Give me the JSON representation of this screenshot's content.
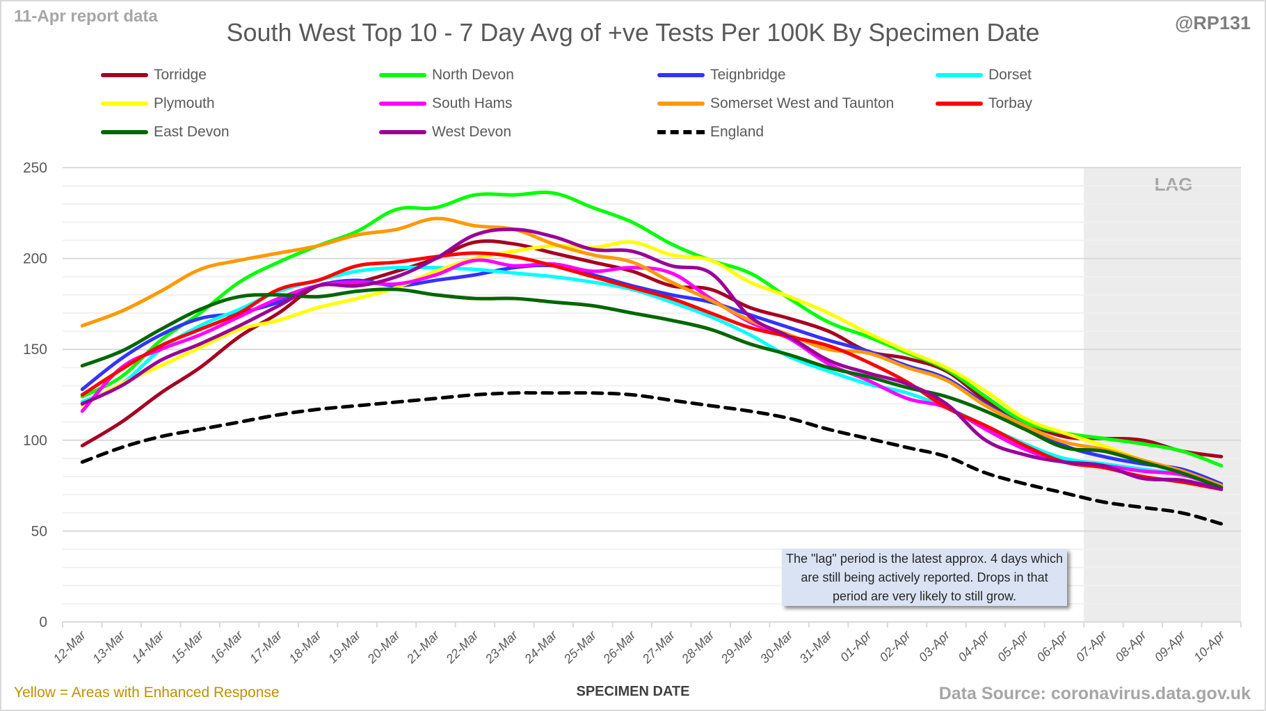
{
  "header": {
    "report_date": "11-Apr report data",
    "handle": "@RP131"
  },
  "footer": {
    "footnote": "Yellow = Areas with Enhanced Response",
    "source": "Data Source: coronavirus.data.gov.uk"
  },
  "note": "The \"lag\" period is the latest approx. 4 days which are still being actively reported.  Drops in that period are very likely to still grow.",
  "chart_data": {
    "type": "line",
    "title": "South West Top 10 - 7 Day Avg of +ve Tests Per 100K By Specimen Date",
    "xlabel": "SPECIMEN DATE",
    "ylabel": "",
    "ylim": [
      0,
      250
    ],
    "yticks": [
      0,
      50,
      100,
      150,
      200,
      250
    ],
    "grid": true,
    "legend_position": "top",
    "lag_region": {
      "label": "LAG",
      "from": "07-Apr",
      "to": "10-Apr",
      "color": "#ececec"
    },
    "x": [
      "12-Mar",
      "13-Mar",
      "14-Mar",
      "15-Mar",
      "16-Mar",
      "17-Mar",
      "18-Mar",
      "19-Mar",
      "20-Mar",
      "21-Mar",
      "22-Mar",
      "23-Mar",
      "24-Mar",
      "25-Mar",
      "26-Mar",
      "27-Mar",
      "28-Mar",
      "29-Mar",
      "30-Mar",
      "31-Mar",
      "01-Apr",
      "02-Apr",
      "03-Apr",
      "04-Apr",
      "05-Apr",
      "06-Apr",
      "07-Apr",
      "08-Apr",
      "09-Apr",
      "10-Apr"
    ],
    "series": [
      {
        "name": "Torridge",
        "color": "#a50021",
        "dashed": false,
        "values": [
          97,
          110,
          126,
          140,
          157,
          170,
          185,
          187,
          193,
          200,
          209,
          208,
          203,
          198,
          193,
          185,
          183,
          173,
          167,
          160,
          149,
          145,
          138,
          122,
          110,
          102,
          101,
          100,
          94,
          91
        ]
      },
      {
        "name": "North Devon",
        "color": "#00ff00",
        "dashed": false,
        "values": [
          124,
          135,
          155,
          170,
          187,
          198,
          207,
          215,
          227,
          228,
          235,
          235,
          236,
          228,
          220,
          208,
          199,
          192,
          178,
          165,
          157,
          148,
          139,
          124,
          110,
          104,
          101,
          98,
          94,
          86
        ]
      },
      {
        "name": "Teignbridge",
        "color": "#3333ff",
        "dashed": false,
        "values": [
          128,
          145,
          158,
          167,
          170,
          176,
          185,
          188,
          185,
          188,
          191,
          195,
          196,
          191,
          185,
          180,
          176,
          169,
          162,
          155,
          149,
          141,
          134,
          120,
          108,
          97,
          91,
          87,
          84,
          76
        ]
      },
      {
        "name": "Dorset",
        "color": "#00ffff",
        "dashed": false,
        "values": [
          121,
          131,
          150,
          163,
          172,
          182,
          188,
          193,
          195,
          195,
          194,
          192,
          190,
          187,
          183,
          176,
          168,
          158,
          146,
          138,
          131,
          126,
          118,
          108,
          98,
          90,
          87,
          84,
          81,
          75
        ]
      },
      {
        "name": "Plymouth",
        "color": "#ffff00",
        "dashed": false,
        "values": [
          119,
          131,
          141,
          151,
          161,
          166,
          173,
          178,
          184,
          193,
          200,
          204,
          207,
          206,
          209,
          202,
          199,
          187,
          179,
          170,
          159,
          149,
          140,
          127,
          112,
          104,
          97,
          89,
          83,
          75
        ]
      },
      {
        "name": "South Hams",
        "color": "#ff00ff",
        "dashed": false,
        "values": [
          116,
          140,
          150,
          158,
          168,
          178,
          185,
          187,
          186,
          191,
          199,
          196,
          197,
          193,
          195,
          192,
          178,
          165,
          156,
          142,
          133,
          123,
          118,
          106,
          95,
          88,
          86,
          83,
          81,
          74
        ]
      },
      {
        "name": "Somerset West and Taunton",
        "color": "#ff9900",
        "dashed": false,
        "values": [
          163,
          171,
          182,
          194,
          199,
          203,
          207,
          213,
          216,
          222,
          218,
          216,
          208,
          202,
          198,
          187,
          177,
          166,
          158,
          150,
          148,
          140,
          133,
          119,
          108,
          99,
          95,
          89,
          83,
          75
        ]
      },
      {
        "name": "Torbay",
        "color": "#ff0000",
        "dashed": false,
        "values": [
          125,
          139,
          152,
          161,
          170,
          183,
          188,
          196,
          198,
          201,
          203,
          201,
          196,
          190,
          184,
          178,
          170,
          162,
          157,
          152,
          143,
          132,
          118,
          108,
          97,
          88,
          85,
          80,
          77,
          73
        ]
      },
      {
        "name": "East Devon",
        "color": "#006600",
        "dashed": false,
        "values": [
          141,
          149,
          161,
          172,
          179,
          180,
          179,
          182,
          183,
          180,
          178,
          178,
          176,
          174,
          170,
          166,
          161,
          153,
          147,
          140,
          135,
          129,
          124,
          116,
          106,
          96,
          94,
          88,
          82,
          74
        ]
      },
      {
        "name": "West Devon",
        "color": "#990099",
        "dashed": false,
        "values": [
          120,
          130,
          144,
          153,
          163,
          174,
          185,
          185,
          190,
          200,
          213,
          216,
          212,
          205,
          204,
          196,
          192,
          168,
          157,
          144,
          137,
          131,
          120,
          100,
          92,
          88,
          86,
          79,
          78,
          73
        ]
      },
      {
        "name": "England",
        "color": "#000000",
        "dashed": true,
        "values": [
          88,
          96,
          102,
          106,
          110,
          114,
          117,
          119,
          121,
          123,
          125,
          126,
          126,
          126,
          125,
          122,
          119,
          116,
          112,
          106,
          101,
          96,
          91,
          82,
          76,
          71,
          66,
          63,
          60,
          54
        ]
      }
    ]
  }
}
